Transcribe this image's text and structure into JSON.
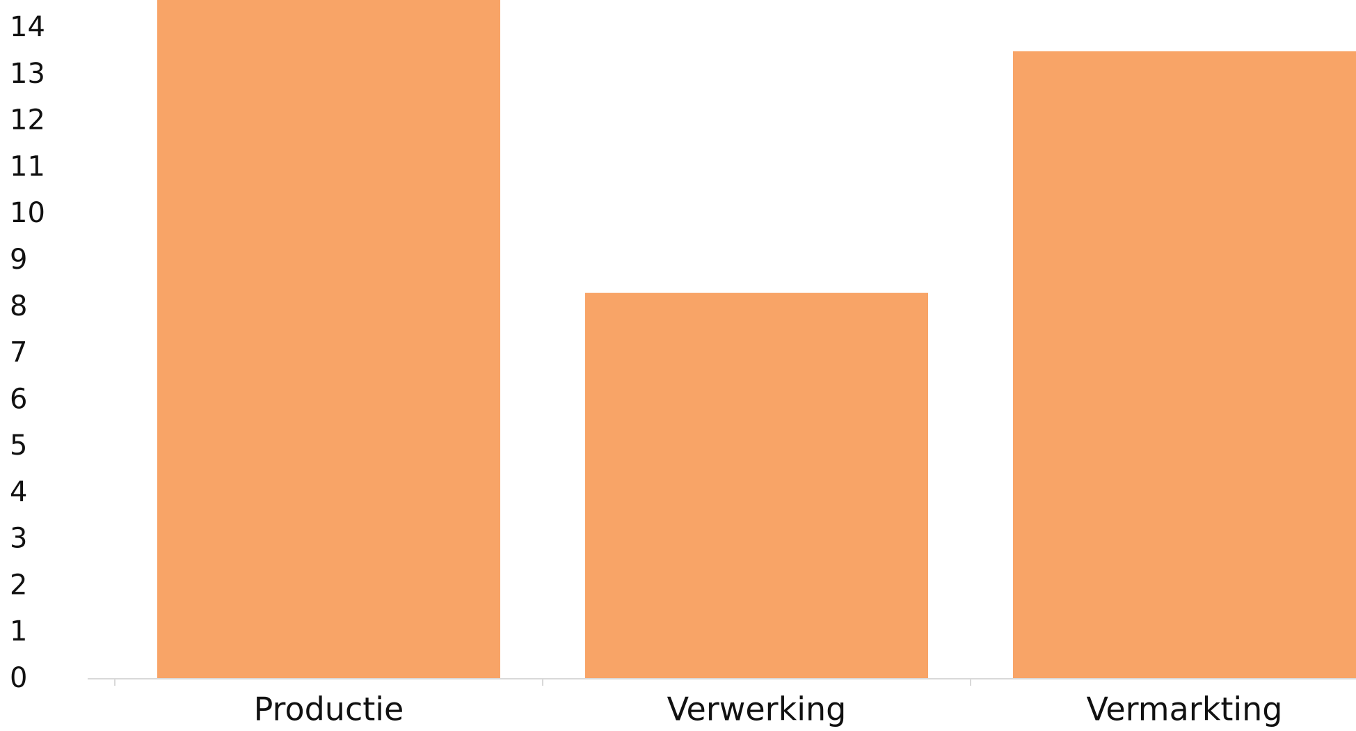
{
  "chart_data": {
    "type": "bar",
    "categories": [
      "Productie",
      "Verwerking",
      "Vermarkting"
    ],
    "values": [
      14.6,
      8.3,
      13.5
    ],
    "ylim": [
      0,
      14.6
    ],
    "yticks": [
      0,
      1,
      2,
      3,
      4,
      5,
      6,
      7,
      8,
      9,
      10,
      11,
      12,
      13,
      14
    ],
    "bar_color": "#F8A467",
    "axis_color": "#D9D9D9",
    "grid": false,
    "title": "",
    "xlabel": "",
    "ylabel": ""
  }
}
